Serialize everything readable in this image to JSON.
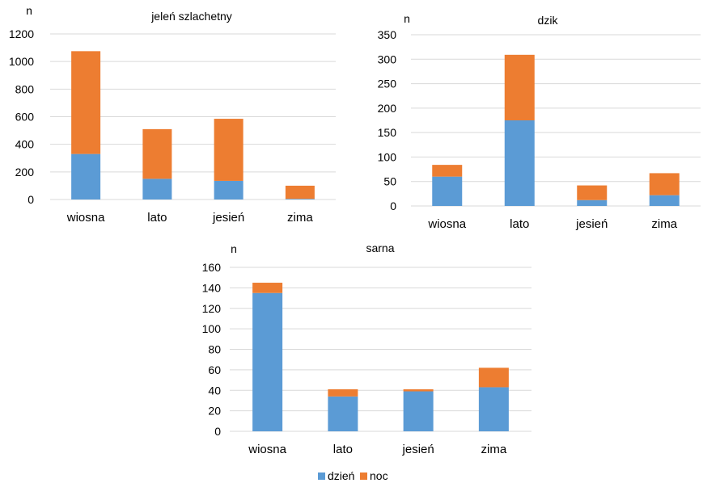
{
  "chart_data": [
    {
      "type": "bar",
      "stacked": true,
      "title": "jeleń szlachetny",
      "ylabel": "n",
      "categories": [
        "wiosna",
        "lato",
        "jesień",
        "zima"
      ],
      "ylim": [
        0,
        1200
      ],
      "yticks": [
        0,
        200,
        400,
        600,
        800,
        1000,
        1200
      ],
      "grid": true,
      "series": [
        {
          "name": "dzień",
          "color": "#5b9bd5",
          "values": [
            330,
            150,
            135,
            5
          ]
        },
        {
          "name": "noc",
          "color": "#ed7d31",
          "values": [
            745,
            360,
            450,
            95
          ]
        }
      ]
    },
    {
      "type": "bar",
      "stacked": true,
      "title": "dzik",
      "ylabel": "n",
      "categories": [
        "wiosna",
        "lato",
        "jesień",
        "zima"
      ],
      "ylim": [
        0,
        350
      ],
      "yticks": [
        0,
        50,
        100,
        150,
        200,
        250,
        300,
        350
      ],
      "grid": true,
      "series": [
        {
          "name": "dzień",
          "color": "#5b9bd5",
          "values": [
            60,
            175,
            12,
            22
          ]
        },
        {
          "name": "noc",
          "color": "#ed7d31",
          "values": [
            24,
            134,
            30,
            45
          ]
        }
      ]
    },
    {
      "type": "bar",
      "stacked": true,
      "title": "sarna",
      "ylabel": "n",
      "categories": [
        "wiosna",
        "lato",
        "jesień",
        "zima"
      ],
      "ylim": [
        0,
        160
      ],
      "yticks": [
        0,
        20,
        40,
        60,
        80,
        100,
        120,
        140,
        160
      ],
      "grid": true,
      "series": [
        {
          "name": "dzień",
          "color": "#5b9bd5",
          "values": [
            135,
            34,
            39,
            43
          ]
        },
        {
          "name": "noc",
          "color": "#ed7d31",
          "values": [
            10,
            7,
            2,
            19
          ]
        }
      ]
    }
  ],
  "legend": {
    "placement": "bottom",
    "items": [
      {
        "label": "dzień",
        "color": "#5b9bd5"
      },
      {
        "label": "noc",
        "color": "#ed7d31"
      }
    ]
  }
}
